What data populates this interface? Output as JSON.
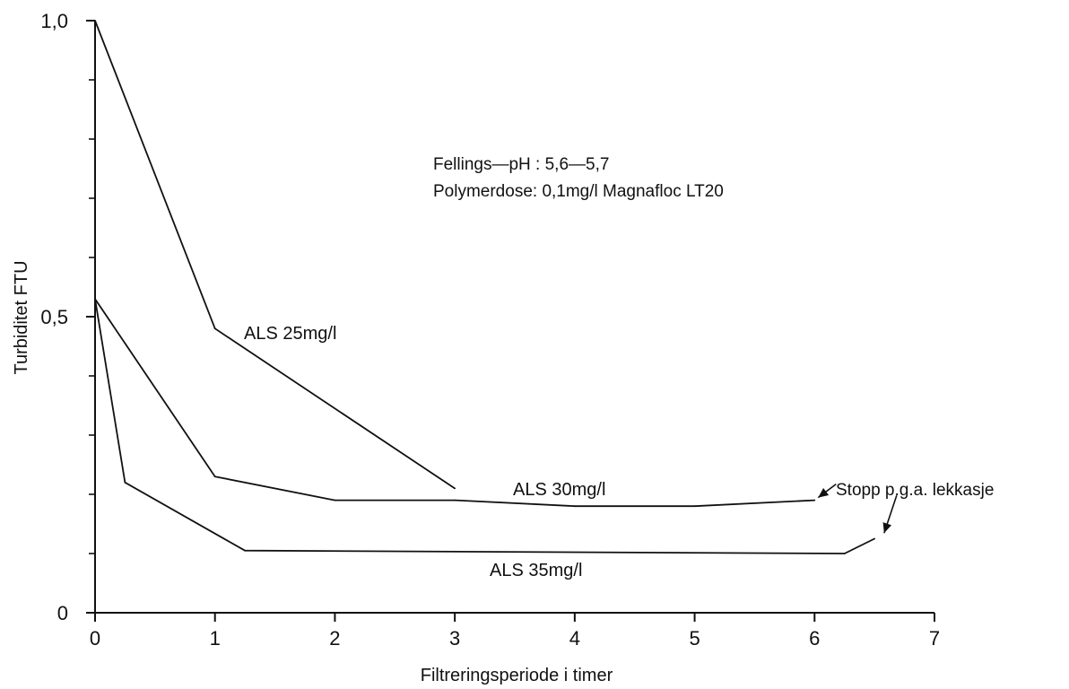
{
  "chart_data": {
    "type": "line",
    "title": "",
    "xlabel": "Filtreringsperiode i timer",
    "ylabel": "Turbiditet FTU",
    "xlim": [
      0,
      7
    ],
    "ylim": [
      0,
      1.0
    ],
    "x_ticks": [
      0,
      1,
      2,
      3,
      4,
      5,
      6,
      7
    ],
    "x_tick_labels": [
      "0",
      "1",
      "2",
      "3",
      "4",
      "5",
      "6",
      "7"
    ],
    "y_ticks": [
      0,
      0.5,
      1.0
    ],
    "y_tick_labels": [
      "0",
      "0,5",
      "1,0"
    ],
    "y_minor_ticks": [
      0.1,
      0.2,
      0.3,
      0.4,
      0.6,
      0.7,
      0.8,
      0.9
    ],
    "grid": false,
    "series": [
      {
        "name": "ALS 25mg/l",
        "x": [
          0,
          1,
          3
        ],
        "y": [
          1.0,
          0.48,
          0.21
        ]
      },
      {
        "name": "ALS 30mg/l",
        "x": [
          0,
          1,
          2,
          3,
          4,
          5,
          6
        ],
        "y": [
          0.53,
          0.23,
          0.19,
          0.19,
          0.18,
          0.18,
          0.19
        ]
      },
      {
        "name": "ALS 35mg/l",
        "x": [
          0,
          0.25,
          1.25,
          6.25,
          6.5
        ],
        "y": [
          0.53,
          0.22,
          0.105,
          0.1,
          0.125
        ]
      }
    ],
    "annotations": {
      "conditions": [
        "Fellings—pH : 5,6—5,7",
        "Polymerdose: 0,1mg/l Magnafloc LT20"
      ],
      "stop_note": "Stopp p.g.a. lekkasje",
      "stop_points": [
        {
          "x": 6.0,
          "y": 0.19
        },
        {
          "x": 6.55,
          "y": 0.13
        }
      ]
    }
  }
}
